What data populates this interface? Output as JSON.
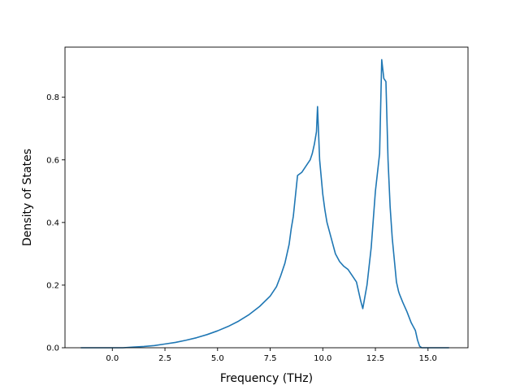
{
  "chart_data": {
    "type": "line",
    "title": "",
    "xlabel": "Frequency (THz)",
    "ylabel": "Density of States",
    "xlim": [
      -2.25,
      16.9
    ],
    "ylim": [
      0,
      0.96
    ],
    "xticks": [
      0.0,
      2.5,
      5.0,
      7.5,
      10.0,
      12.5,
      15.0
    ],
    "xtick_labels": [
      "0.0",
      "2.5",
      "5.0",
      "7.5",
      "10.0",
      "12.5",
      "15.0"
    ],
    "yticks": [
      0.0,
      0.2,
      0.4,
      0.6,
      0.8
    ],
    "ytick_labels": [
      "0.0",
      "0.2",
      "0.4",
      "0.6",
      "0.8"
    ],
    "grid": false,
    "legend": "none",
    "line_color": "#1f77b4",
    "series": [
      {
        "x": [
          -1.5,
          -1.0,
          -0.5,
          0.0,
          0.5,
          1.0,
          1.5,
          2.0,
          2.5,
          3.0,
          3.5,
          4.0,
          4.5,
          5.0,
          5.5,
          6.0,
          6.5,
          7.0,
          7.5,
          7.8,
          8.0,
          8.2,
          8.4,
          8.5,
          8.6,
          8.8,
          9.0,
          9.2,
          9.4,
          9.5,
          9.6,
          9.7,
          9.75,
          9.85,
          10.0,
          10.1,
          10.2,
          10.4,
          10.6,
          10.8,
          11.0,
          11.2,
          11.4,
          11.6,
          11.8,
          11.9,
          12.1,
          12.3,
          12.5,
          12.7,
          12.8,
          12.9,
          13.0,
          13.1,
          13.2,
          13.3,
          13.4,
          13.5,
          13.6,
          13.65,
          13.8,
          14.0,
          14.2,
          14.4,
          14.5,
          14.6,
          14.7,
          15.0,
          15.5,
          16.0
        ],
        "y": [
          0.0,
          0.0,
          0.0,
          0.0,
          0.0,
          0.002,
          0.004,
          0.007,
          0.012,
          0.017,
          0.024,
          0.032,
          0.042,
          0.054,
          0.068,
          0.085,
          0.106,
          0.132,
          0.165,
          0.195,
          0.23,
          0.27,
          0.33,
          0.38,
          0.42,
          0.55,
          0.56,
          0.58,
          0.6,
          0.62,
          0.65,
          0.69,
          0.77,
          0.6,
          0.49,
          0.44,
          0.4,
          0.35,
          0.3,
          0.275,
          0.26,
          0.25,
          0.23,
          0.21,
          0.15,
          0.125,
          0.2,
          0.32,
          0.5,
          0.62,
          0.92,
          0.86,
          0.85,
          0.6,
          0.45,
          0.35,
          0.28,
          0.21,
          0.18,
          0.17,
          0.145,
          0.115,
          0.08,
          0.055,
          0.025,
          0.005,
          0.0,
          0.0,
          0.0,
          0.0
        ]
      }
    ]
  }
}
